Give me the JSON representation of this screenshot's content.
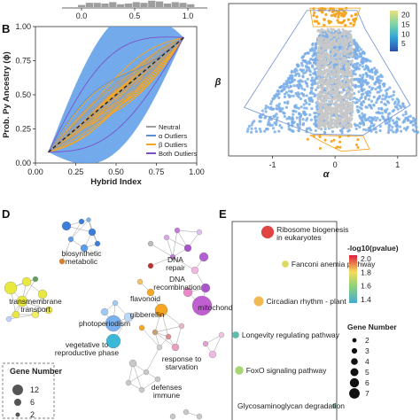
{
  "panels": {
    "B": "B",
    "D": "D",
    "E": "E"
  },
  "chart_data": [
    {
      "panel": "top",
      "type": "bar",
      "x_ticks": [
        "0.0",
        "0.5",
        "1.0"
      ],
      "values": [
        0.3,
        0.6,
        0.6,
        0.5,
        0.7,
        0.4,
        0.5,
        0.7,
        0.6,
        0.9,
        0.8,
        0.5,
        0.7,
        0.6,
        0.4
      ],
      "color": "#9e9e9e"
    },
    {
      "panel": "B",
      "type": "line",
      "xlabel": "Hybrid Index",
      "ylabel": "Prob. Py Ancestry (ϕ)",
      "xlim": [
        0,
        1
      ],
      "ylim": [
        0,
        1
      ],
      "x_ticks": [
        "0.00",
        "0.25",
        "0.50",
        "0.75",
        "1.00"
      ],
      "y_ticks": [
        "0.00",
        "0.25",
        "0.50",
        "0.75",
        "1.00"
      ],
      "legend_position": "bottom-right",
      "series": [
        {
          "name": "Neutral",
          "color": "#9e9e9e"
        },
        {
          "name": "α Outliers",
          "color": "#5b8fd9"
        },
        {
          "name": "β Outliers",
          "color": "#f5a623"
        },
        {
          "name": "Both Outliers",
          "color": "#7b52c9"
        }
      ],
      "band_color": "#5b9be8"
    },
    {
      "panel": "C",
      "type": "scatter",
      "xlabel": "α",
      "ylabel": "β",
      "x_ticks": [
        "-1",
        "0",
        "1"
      ],
      "xlim": [
        -1.7,
        1.3
      ],
      "ylim": [
        -3.2,
        3.4
      ],
      "colorbar_ticks": [
        "20",
        "15",
        "10",
        "5"
      ],
      "colorbar_range": [
        1,
        22
      ],
      "colors": {
        "neutral": "#c8c8c8",
        "outlier": "#7aaee8",
        "top": "#f5a623",
        "bottom": "#f5a623",
        "hull": "#7b9ad9"
      }
    },
    {
      "panel": "D",
      "type": "network",
      "labels": [
        "biosynthetic metabolic",
        "DNA repair",
        "flavonoid",
        "DNA recombination",
        "transmembrane transport",
        "photoperiodism",
        "gibberellin",
        "mitochondrion",
        "vegetative to reproductive phase",
        "response to starvation",
        "defenses immune"
      ],
      "legend_title": "Gene Number",
      "legend_values": [
        "12",
        "6",
        "2"
      ]
    },
    {
      "panel": "E",
      "type": "scatter",
      "categories": [
        "Ribosome biogenesis in eukaryotes",
        "Fanconi anemia pathway",
        "Circadian rhythm - plant",
        "Longevity regulating pathway",
        "FoxO signaling pathway",
        "Glycosaminoglycan degradation"
      ],
      "neg_log10_pvalue": [
        2.0,
        1.75,
        1.85,
        1.45,
        1.65,
        1.5
      ],
      "gene_number": [
        7,
        3,
        5,
        3,
        4,
        2
      ],
      "colorbar_title": "-log10(pvalue)",
      "colorbar_ticks": [
        "2.0",
        "1.8",
        "1.6",
        "1.4"
      ],
      "colorbar_range": [
        1.35,
        2.05
      ],
      "size_legend_title": "Gene Number",
      "size_legend_values": [
        "2",
        "3",
        "4",
        "5",
        "6",
        "7"
      ]
    }
  ]
}
